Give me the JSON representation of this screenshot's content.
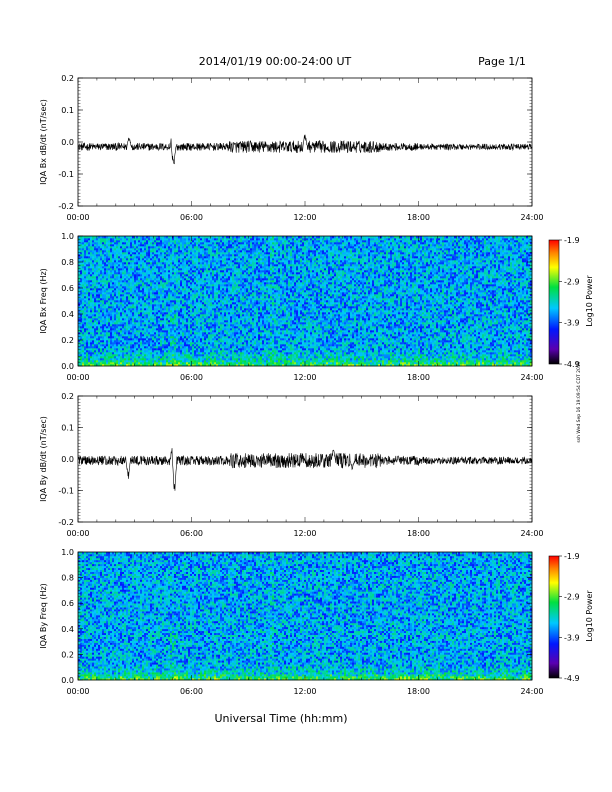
{
  "header": {
    "date_range": "2014/01/19  00:00-24:00 UT",
    "page": "Page 1/1"
  },
  "side_note": "ssh Wed Sep 16 19:09:54 CDT 2019",
  "xlabel": "Universal Time (hh:mm)",
  "x_ticks": [
    "00:00",
    "06:00",
    "12:00",
    "18:00",
    "24:00"
  ],
  "chart_data": [
    {
      "type": "line",
      "ylabel": "IQA Bx dB/dt (nT/sec)",
      "ylim": [
        -0.2,
        0.2
      ],
      "y_ticks": [
        "0.2",
        "0.1",
        "0.0",
        "-0.1",
        "-0.2"
      ],
      "xlim_hours": [
        0,
        24
      ],
      "baseline": -0.015,
      "noise_amplitude": 0.012,
      "events": [
        {
          "t_hours": 2.7,
          "peak": 0.03
        },
        {
          "t_hours": 5.0,
          "peak": 0.07
        },
        {
          "t_hours": 5.05,
          "peak": -0.1
        },
        {
          "t_hours": 12.0,
          "peak": 0.035
        }
      ]
    },
    {
      "type": "heatmap",
      "ylabel": "IQA Bx Freq (Hz)",
      "ylim": [
        0.0,
        1.0
      ],
      "y_ticks": [
        "1.0",
        "0.8",
        "0.6",
        "0.4",
        "0.2",
        "0.0"
      ],
      "colorbar": {
        "label": "Log10 Power",
        "ticks": [
          "-1.9",
          "-2.9",
          "-3.9",
          "-4.9"
        ],
        "range": [
          -4.9,
          -1.9
        ]
      }
    },
    {
      "type": "line",
      "ylabel": "IQA By dB/dt (nT/sec)",
      "ylim": [
        -0.2,
        0.2
      ],
      "y_ticks": [
        "0.2",
        "0.1",
        "0.0",
        "-0.1",
        "-0.2"
      ],
      "xlim_hours": [
        0,
        24
      ],
      "baseline": -0.005,
      "noise_amplitude": 0.015,
      "events": [
        {
          "t_hours": 2.6,
          "peak": 0.06
        },
        {
          "t_hours": 2.65,
          "peak": -0.08
        },
        {
          "t_hours": 5.0,
          "peak": 0.08
        },
        {
          "t_hours": 5.1,
          "peak": -0.13
        },
        {
          "t_hours": 13.5,
          "peak": 0.04
        },
        {
          "t_hours": 14.5,
          "peak": -0.04
        }
      ]
    },
    {
      "type": "heatmap",
      "ylabel": "IQA By Freq (Hz)",
      "ylim": [
        0.0,
        1.0
      ],
      "y_ticks": [
        "1.0",
        "0.8",
        "0.6",
        "0.4",
        "0.2",
        "0.0"
      ],
      "colorbar": {
        "label": "Log10 Power",
        "ticks": [
          "-1.9",
          "-2.9",
          "-3.9",
          "-4.9"
        ],
        "range": [
          -4.9,
          -1.9
        ]
      }
    }
  ]
}
